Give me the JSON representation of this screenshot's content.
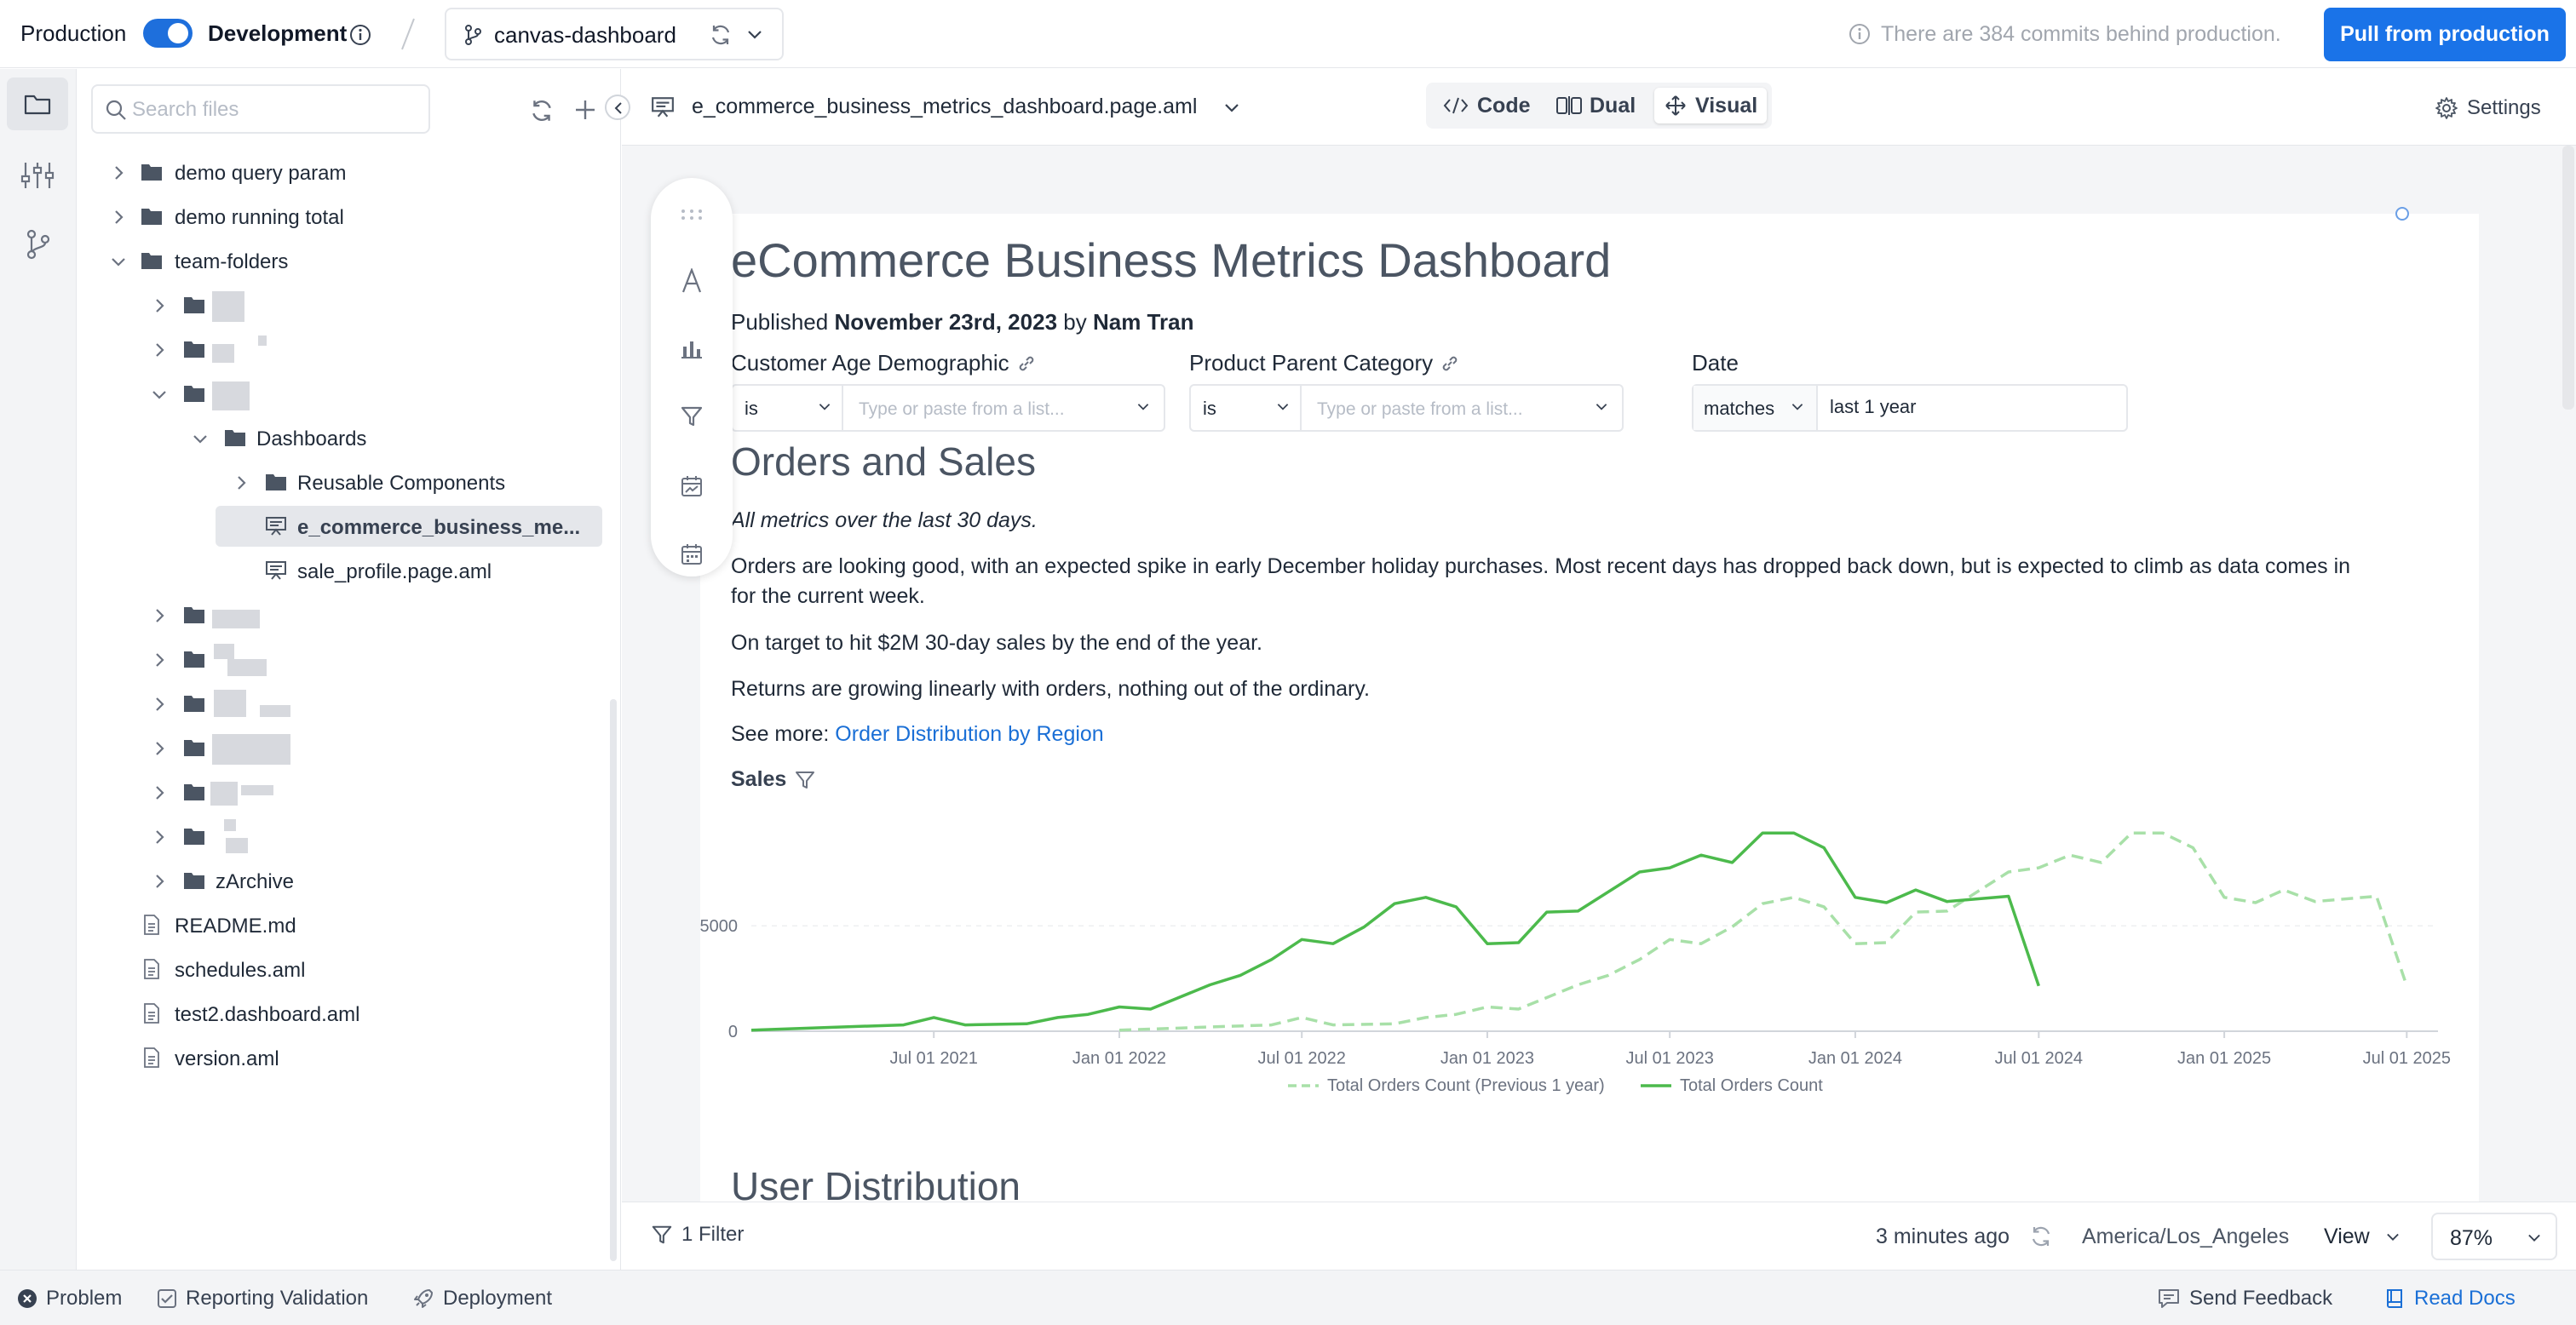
{
  "topbar": {
    "env_production": "Production",
    "env_development": "Development",
    "branch": "canvas-dashboard",
    "commits_notice": "There are 384 commits behind production.",
    "pull_button": "Pull from production"
  },
  "tree": {
    "search_placeholder": "Search files",
    "items": [
      {
        "label": "demo query param"
      },
      {
        "label": "demo running total"
      },
      {
        "label": "team-folders"
      },
      {
        "label": "Dashboards"
      },
      {
        "label": "Reusable Components"
      },
      {
        "label": "e_commerce_business_me..."
      },
      {
        "label": "sale_profile.page.aml"
      },
      {
        "label": "zArchive"
      },
      {
        "label": "README.md"
      },
      {
        "label": "schedules.aml"
      },
      {
        "label": "test2.dashboard.aml"
      },
      {
        "label": "version.aml"
      }
    ]
  },
  "editor": {
    "file_name": "e_commerce_business_metrics_dashboard.page.aml",
    "modes": {
      "code": "Code",
      "dual": "Dual",
      "visual": "Visual"
    },
    "settings": "Settings"
  },
  "dashboard": {
    "title": "eCommerce Business Metrics Dashboard",
    "published_prefix": "Published",
    "published_date": "November 23rd, 2023",
    "by": "by",
    "author": "Nam Tran",
    "filters": [
      {
        "label": "Customer Age Demographic",
        "operator": "is",
        "placeholder": "Type or paste from a list..."
      },
      {
        "label": "Product Parent Category",
        "operator": "is",
        "placeholder": "Type or paste from a list..."
      },
      {
        "label": "Date",
        "operator": "matches",
        "value": "last 1 year"
      }
    ],
    "section1_title": "Orders and Sales",
    "italic_note": "All metrics over the last 30 days.",
    "para1_line1": "Orders are looking good, with an expected spike in early December holiday purchases. Most recent days has dropped back down, but is expected to climb as data comes in",
    "para1_line2": "for the current week.",
    "para2": "On target to hit $2M 30-day sales by the end of the year.",
    "para3": "Returns are growing linearly with orders, nothing out of the ordinary.",
    "see_more_prefix": "See more:",
    "see_more_link": "Order Distribution by Region",
    "chart_title": "Sales",
    "section2_title": "User Distribution"
  },
  "chart_data": {
    "type": "line",
    "title": "Sales",
    "xlabel": "",
    "ylabel": "",
    "x_ticks": [
      "Jul 01 2021",
      "Jan 01 2022",
      "Jul 01 2022",
      "Jan 01 2023",
      "Jul 01 2023",
      "Jan 01 2024",
      "Jul 01 2024",
      "Jan 01 2025",
      "Jul 01 2025"
    ],
    "y_ticks": [
      0,
      5000
    ],
    "ylim": [
      0,
      10500
    ],
    "grid": "horizontal",
    "legend_position": "bottom",
    "series": [
      {
        "name": "Total Orders Count",
        "style": "solid",
        "color": "#4cba4c",
        "points": [
          [
            "2021-01-01",
            50
          ],
          [
            "2021-04-01",
            200
          ],
          [
            "2021-06-01",
            300
          ],
          [
            "2021-07-01",
            650
          ],
          [
            "2021-08-01",
            300
          ],
          [
            "2021-10-01",
            350
          ],
          [
            "2021-11-01",
            650
          ],
          [
            "2021-12-01",
            800
          ],
          [
            "2022-01-01",
            1150
          ],
          [
            "2022-02-01",
            1050
          ],
          [
            "2022-04-01",
            2200
          ],
          [
            "2022-05-01",
            2650
          ],
          [
            "2022-06-01",
            3400
          ],
          [
            "2022-07-01",
            4350
          ],
          [
            "2022-08-01",
            4150
          ],
          [
            "2022-09-01",
            4950
          ],
          [
            "2022-10-01",
            6050
          ],
          [
            "2022-11-01",
            6350
          ],
          [
            "2022-12-01",
            5900
          ],
          [
            "2023-01-01",
            4150
          ],
          [
            "2023-02-01",
            4200
          ],
          [
            "2023-03-01",
            5650
          ],
          [
            "2023-04-01",
            5700
          ],
          [
            "2023-06-01",
            7550
          ],
          [
            "2023-07-01",
            7750
          ],
          [
            "2023-08-01",
            8350
          ],
          [
            "2023-09-01",
            8000
          ],
          [
            "2023-10-01",
            9400
          ],
          [
            "2023-11-01",
            9400
          ],
          [
            "2023-12-01",
            8700
          ],
          [
            "2024-01-01",
            6350
          ],
          [
            "2024-02-01",
            6100
          ],
          [
            "2024-03-01",
            6700
          ],
          [
            "2024-04-01",
            6150
          ],
          [
            "2024-06-01",
            6400
          ],
          [
            "2024-07-01",
            2150
          ]
        ]
      },
      {
        "name": "Total Orders Count (Previous 1 year)",
        "style": "dashed",
        "color": "#a8e0a8",
        "points": [
          [
            "2022-01-01",
            50
          ],
          [
            "2022-04-01",
            200
          ],
          [
            "2022-06-01",
            300
          ],
          [
            "2022-07-01",
            650
          ],
          [
            "2022-08-01",
            300
          ],
          [
            "2022-10-01",
            350
          ],
          [
            "2022-11-01",
            650
          ],
          [
            "2022-12-01",
            800
          ],
          [
            "2023-01-01",
            1150
          ],
          [
            "2023-02-01",
            1050
          ],
          [
            "2023-04-01",
            2200
          ],
          [
            "2023-05-01",
            2650
          ],
          [
            "2023-06-01",
            3400
          ],
          [
            "2023-07-01",
            4350
          ],
          [
            "2023-08-01",
            4150
          ],
          [
            "2023-09-01",
            4950
          ],
          [
            "2023-10-01",
            6050
          ],
          [
            "2023-11-01",
            6350
          ],
          [
            "2023-12-01",
            5900
          ],
          [
            "2024-01-01",
            4150
          ],
          [
            "2024-02-01",
            4200
          ],
          [
            "2024-03-01",
            5650
          ],
          [
            "2024-04-01",
            5700
          ],
          [
            "2024-06-01",
            7550
          ],
          [
            "2024-07-01",
            7750
          ],
          [
            "2024-08-01",
            8350
          ],
          [
            "2024-09-01",
            8000
          ],
          [
            "2024-10-01",
            9400
          ],
          [
            "2024-11-01",
            9400
          ],
          [
            "2024-12-01",
            8700
          ],
          [
            "2025-01-01",
            6350
          ],
          [
            "2025-02-01",
            6100
          ],
          [
            "2025-03-01",
            6700
          ],
          [
            "2025-04-01",
            6150
          ],
          [
            "2025-06-01",
            6400
          ],
          [
            "2025-07-01",
            2150
          ]
        ]
      }
    ]
  },
  "statusbar": {
    "filter": "1 Filter",
    "updated": "3 minutes ago",
    "timezone": "America/Los_Angeles",
    "view": "View",
    "zoom": "87%"
  },
  "footer": {
    "problem": "Problem",
    "reporting": "Reporting Validation",
    "deployment": "Deployment",
    "feedback": "Send Feedback",
    "docs": "Read Docs"
  }
}
